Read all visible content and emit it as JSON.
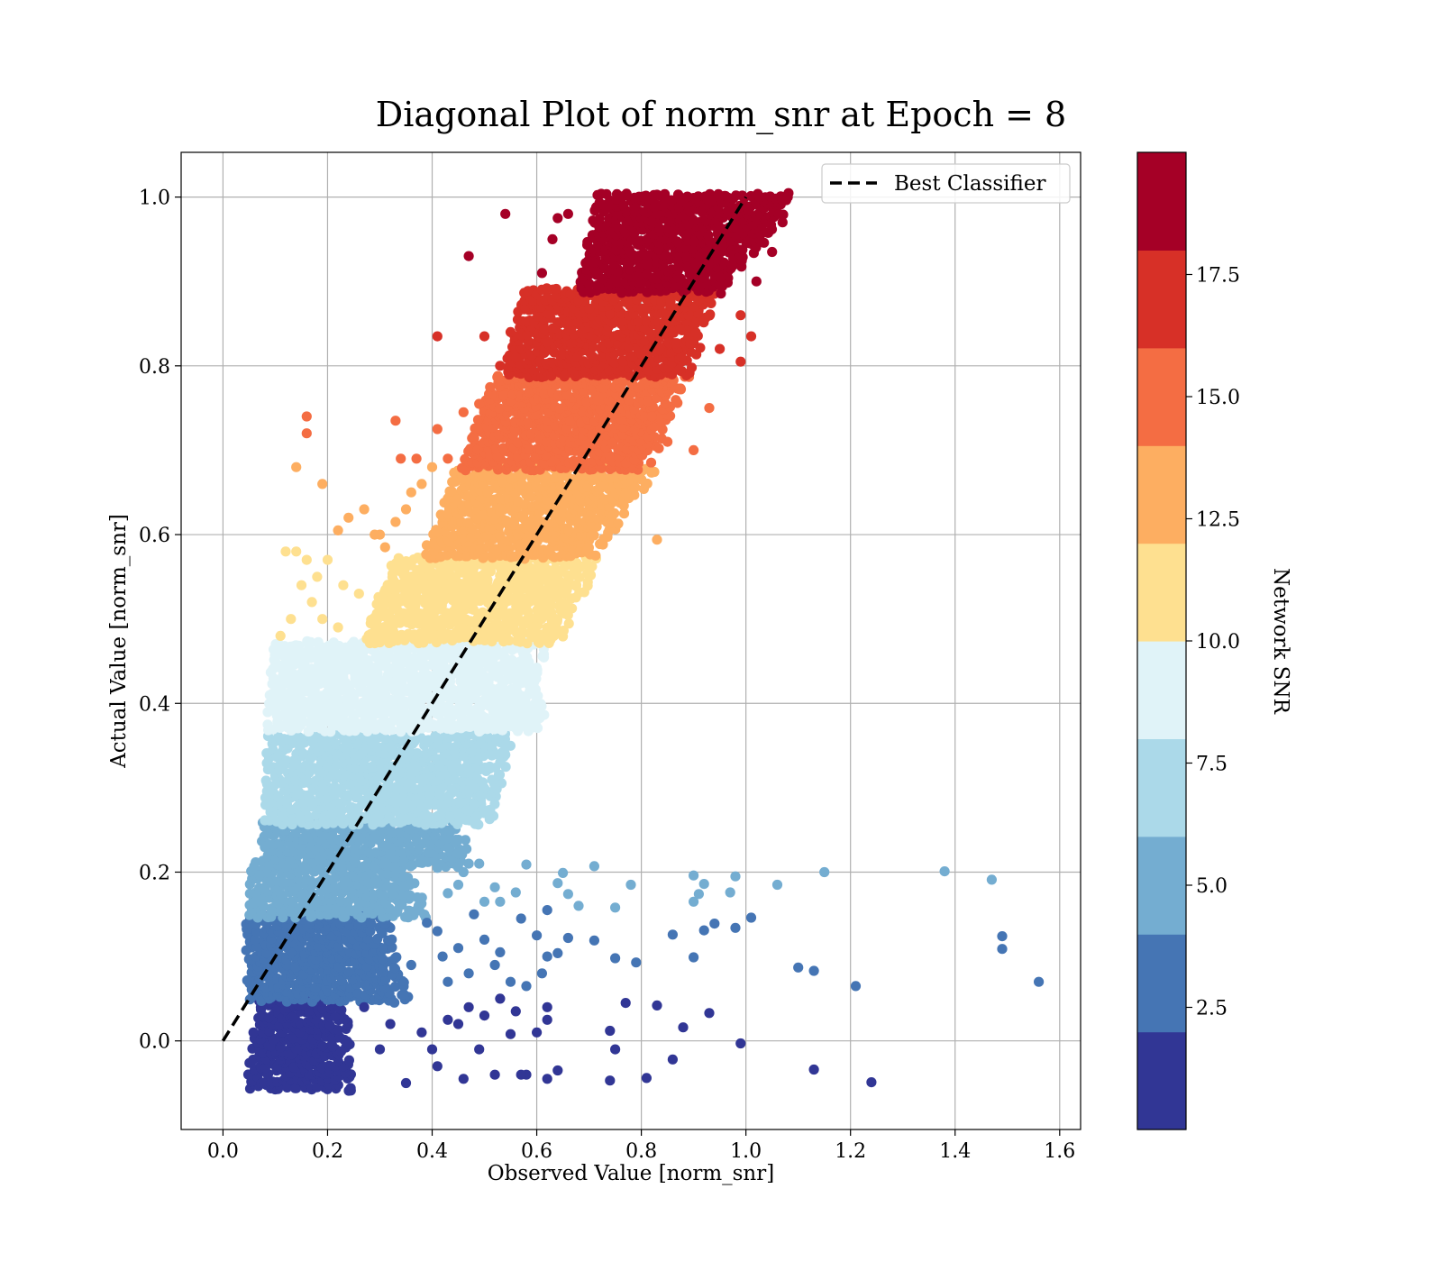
{
  "chart_data": {
    "type": "scatter",
    "title": "Diagonal Plot of norm_snr at Epoch = 8",
    "xlabel": "Observed Value [norm_snr]",
    "ylabel": "Actual Value [norm_snr]",
    "xlim": [
      -0.08,
      1.64
    ],
    "ylim": [
      -0.105,
      1.053
    ],
    "xticks": [
      0.0,
      0.2,
      0.4,
      0.6,
      0.8,
      1.0,
      1.2,
      1.4,
      1.6
    ],
    "yticks": [
      0.0,
      0.2,
      0.4,
      0.6,
      0.8,
      1.0
    ],
    "xtick_labels": [
      "0.0",
      "0.2",
      "0.4",
      "0.6",
      "0.8",
      "1.0",
      "1.2",
      "1.4",
      "1.6"
    ],
    "ytick_labels": [
      "0.0",
      "0.2",
      "0.4",
      "0.6",
      "0.8",
      "1.0"
    ],
    "grid": true,
    "legend": {
      "placement": "top-right",
      "entries": [
        "Best Classifier"
      ]
    },
    "reference_line": {
      "name": "Best Classifier",
      "style": "dashed",
      "color": "#000000",
      "x": [
        0.0,
        1.0
      ],
      "y": [
        0.0,
        1.0
      ]
    },
    "colorbar": {
      "label": "Network SNR",
      "range": [
        0,
        20
      ],
      "ticks": [
        2.5,
        5.0,
        7.5,
        10.0,
        12.5,
        15.0,
        17.5
      ],
      "tick_labels": [
        "2.5",
        "5.0",
        "7.5",
        "10.0",
        "12.5",
        "15.0",
        "17.5"
      ],
      "colors": [
        "#313695",
        "#4575b4",
        "#74add1",
        "#abd9e9",
        "#e0f3f8",
        "#fee090",
        "#fdae61",
        "#f46d43",
        "#d73027",
        "#a50026"
      ]
    },
    "bands": [
      {
        "y_range": [
          -0.055,
          0.048
        ],
        "x_start": [
          0.05,
          0.07
        ],
        "x_end": [
          0.22,
          0.2
        ],
        "color": "#313695"
      },
      {
        "y_range": [
          0.05,
          0.148
        ],
        "x_start": [
          0.05,
          0.05
        ],
        "x_end": [
          0.32,
          0.28
        ],
        "color": "#4575b4"
      },
      {
        "y_range": [
          0.15,
          0.208
        ],
        "x_start": [
          0.05,
          0.06
        ],
        "x_end": [
          0.36,
          0.32
        ],
        "color": "#74add1"
      },
      {
        "y_range": [
          0.21,
          0.258
        ],
        "x_start": [
          0.08,
          0.08
        ],
        "x_end": [
          0.44,
          0.42
        ],
        "color": "#74add1"
      },
      {
        "y_range": [
          0.26,
          0.36
        ],
        "x_start": [
          0.085,
          0.09
        ],
        "x_end": [
          0.48,
          0.52
        ],
        "color": "#abd9e9"
      },
      {
        "y_range": [
          0.37,
          0.47
        ],
        "x_start": [
          0.09,
          0.095
        ],
        "x_end": [
          0.58,
          0.58
        ],
        "color": "#e0f3f8"
      },
      {
        "y_range": [
          0.475,
          0.57
        ],
        "x_start": [
          0.27,
          0.33
        ],
        "x_end": [
          0.62,
          0.68
        ],
        "color": "#fee090"
      },
      {
        "y_range": [
          0.575,
          0.678
        ],
        "x_start": [
          0.39,
          0.45
        ],
        "x_end": [
          0.68,
          0.8
        ],
        "color": "#fdae61"
      },
      {
        "y_range": [
          0.68,
          0.785
        ],
        "x_start": [
          0.46,
          0.52
        ],
        "x_end": [
          0.78,
          0.86
        ],
        "color": "#f46d43"
      },
      {
        "y_range": [
          0.79,
          0.888
        ],
        "x_start": [
          0.54,
          0.58
        ],
        "x_end": [
          0.86,
          0.92
        ],
        "color": "#d73027"
      },
      {
        "y_range": [
          0.89,
          1.0
        ],
        "x_start": [
          0.68,
          0.72
        ],
        "x_end": [
          0.93,
          1.07
        ],
        "color": "#a50026"
      }
    ],
    "outliers": [
      {
        "color": "#313695",
        "points": [
          [
            0.35,
            -0.05
          ],
          [
            0.4,
            -0.01
          ],
          [
            0.46,
            -0.045
          ],
          [
            0.52,
            -0.04
          ],
          [
            0.58,
            -0.04
          ],
          [
            0.62,
            -0.045
          ],
          [
            0.64,
            -0.035
          ],
          [
            0.74,
            -0.047
          ],
          [
            0.81,
            -0.044
          ],
          [
            0.74,
            0.012
          ],
          [
            0.75,
            -0.01
          ],
          [
            0.86,
            -0.022
          ],
          [
            0.99,
            -0.003
          ],
          [
            1.13,
            -0.034
          ],
          [
            1.24,
            -0.049
          ],
          [
            0.88,
            0.016
          ],
          [
            0.93,
            0.033
          ],
          [
            0.83,
            0.042
          ],
          [
            0.77,
            0.045
          ],
          [
            0.62,
            0.04
          ],
          [
            0.6,
            0.01
          ],
          [
            0.56,
            0.035
          ],
          [
            0.5,
            0.03
          ],
          [
            0.45,
            0.02
          ],
          [
            0.43,
            0.025
          ],
          [
            0.47,
            0.04
          ],
          [
            0.53,
            0.05
          ],
          [
            0.55,
            0.008
          ],
          [
            0.49,
            -0.01
          ],
          [
            0.41,
            -0.03
          ],
          [
            0.38,
            0.01
          ],
          [
            0.32,
            0.02
          ],
          [
            0.3,
            -0.01
          ],
          [
            0.27,
            0.04
          ],
          [
            0.62,
            0.025
          ],
          [
            0.57,
            -0.04
          ]
        ]
      },
      {
        "color": "#4575b4",
        "points": [
          [
            1.56,
            0.07
          ],
          [
            1.49,
            0.124
          ],
          [
            1.49,
            0.109
          ],
          [
            1.21,
            0.065
          ],
          [
            1.13,
            0.083
          ],
          [
            1.1,
            0.087
          ],
          [
            1.01,
            0.146
          ],
          [
            0.98,
            0.134
          ],
          [
            0.94,
            0.139
          ],
          [
            0.92,
            0.131
          ],
          [
            0.86,
            0.126
          ],
          [
            0.9,
            0.099
          ],
          [
            0.79,
            0.093
          ],
          [
            0.75,
            0.098
          ],
          [
            0.71,
            0.119
          ],
          [
            0.66,
            0.122
          ],
          [
            0.64,
            0.104
          ],
          [
            0.6,
            0.125
          ],
          [
            0.62,
            0.155
          ],
          [
            0.61,
            0.08
          ],
          [
            0.57,
            0.145
          ],
          [
            0.52,
            0.09
          ],
          [
            0.55,
            0.07
          ],
          [
            0.5,
            0.12
          ],
          [
            0.47,
            0.08
          ],
          [
            0.45,
            0.11
          ],
          [
            0.41,
            0.13
          ],
          [
            0.43,
            0.07
          ],
          [
            0.48,
            0.15
          ],
          [
            0.53,
            0.105
          ],
          [
            0.58,
            0.065
          ],
          [
            0.42,
            0.1
          ],
          [
            0.39,
            0.14
          ],
          [
            0.36,
            0.09
          ],
          [
            0.62,
            0.1
          ]
        ]
      },
      {
        "color": "#74add1",
        "points": [
          [
            1.47,
            0.191
          ],
          [
            1.38,
            0.201
          ],
          [
            1.15,
            0.2
          ],
          [
            1.06,
            0.185
          ],
          [
            0.98,
            0.195
          ],
          [
            0.97,
            0.176
          ],
          [
            0.92,
            0.186
          ],
          [
            0.9,
            0.196
          ],
          [
            0.91,
            0.174
          ],
          [
            0.9,
            0.165
          ],
          [
            0.78,
            0.185
          ],
          [
            0.75,
            0.158
          ],
          [
            0.71,
            0.207
          ],
          [
            0.68,
            0.16
          ],
          [
            0.66,
            0.174
          ],
          [
            0.65,
            0.199
          ],
          [
            0.64,
            0.187
          ],
          [
            0.58,
            0.209
          ],
          [
            0.56,
            0.176
          ],
          [
            0.52,
            0.182
          ],
          [
            0.5,
            0.165
          ],
          [
            0.49,
            0.21
          ],
          [
            0.47,
            0.21
          ],
          [
            0.45,
            0.185
          ],
          [
            0.43,
            0.175
          ],
          [
            0.41,
            0.205
          ],
          [
            0.53,
            0.165
          ],
          [
            0.46,
            0.2
          ]
        ]
      },
      {
        "color": "#abd9e9",
        "points": [
          [
            0.5,
            0.27
          ],
          [
            0.49,
            0.285
          ],
          [
            0.52,
            0.3
          ],
          [
            0.51,
            0.325
          ],
          [
            0.53,
            0.33
          ],
          [
            0.54,
            0.35
          ],
          [
            0.47,
            0.295
          ],
          [
            0.48,
            0.28
          ]
        ]
      },
      {
        "color": "#e0f3f8",
        "points": [
          [
            0.6,
            0.38
          ],
          [
            0.57,
            0.4
          ]
        ]
      },
      {
        "color": "#fee090",
        "points": [
          [
            0.11,
            0.48
          ],
          [
            0.13,
            0.5
          ],
          [
            0.12,
            0.58
          ],
          [
            0.14,
            0.58
          ],
          [
            0.16,
            0.57
          ],
          [
            0.2,
            0.57
          ],
          [
            0.15,
            0.54
          ],
          [
            0.17,
            0.52
          ],
          [
            0.19,
            0.5
          ],
          [
            0.23,
            0.54
          ],
          [
            0.18,
            0.55
          ],
          [
            0.22,
            0.49
          ],
          [
            0.26,
            0.53
          ]
        ]
      },
      {
        "color": "#fdae61",
        "points": [
          [
            0.14,
            0.68
          ],
          [
            0.19,
            0.66
          ],
          [
            0.22,
            0.605
          ],
          [
            0.24,
            0.62
          ],
          [
            0.27,
            0.63
          ],
          [
            0.29,
            0.6
          ],
          [
            0.33,
            0.615
          ],
          [
            0.35,
            0.63
          ],
          [
            0.36,
            0.65
          ],
          [
            0.38,
            0.66
          ],
          [
            0.4,
            0.68
          ],
          [
            0.31,
            0.585
          ],
          [
            0.3,
            0.6
          ],
          [
            0.83,
            0.594
          ]
        ]
      },
      {
        "color": "#f46d43",
        "points": [
          [
            0.16,
            0.74
          ],
          [
            0.16,
            0.72
          ],
          [
            0.33,
            0.735
          ],
          [
            0.34,
            0.69
          ],
          [
            0.37,
            0.69
          ],
          [
            0.41,
            0.725
          ],
          [
            0.43,
            0.69
          ],
          [
            0.46,
            0.745
          ],
          [
            0.49,
            0.755
          ],
          [
            0.9,
            0.7
          ],
          [
            0.85,
            0.71
          ],
          [
            0.82,
            0.74
          ],
          [
            0.93,
            0.75
          ]
        ]
      },
      {
        "color": "#d73027",
        "points": [
          [
            0.41,
            0.835
          ],
          [
            0.5,
            0.835
          ],
          [
            0.55,
            0.84
          ],
          [
            0.53,
            0.8
          ],
          [
            0.56,
            0.81
          ],
          [
            1.01,
            0.835
          ],
          [
            0.99,
            0.86
          ],
          [
            0.95,
            0.82
          ],
          [
            0.99,
            0.805
          ]
        ]
      },
      {
        "color": "#a50026",
        "points": [
          [
            0.47,
            0.93
          ],
          [
            0.54,
            0.98
          ],
          [
            0.64,
            0.975
          ],
          [
            0.66,
            0.98
          ],
          [
            0.61,
            0.91
          ],
          [
            0.63,
            0.95
          ],
          [
            1.07,
            0.97
          ],
          [
            1.05,
            0.935
          ],
          [
            1.08,
            1.0
          ],
          [
            1.02,
            0.9
          ]
        ]
      }
    ]
  }
}
